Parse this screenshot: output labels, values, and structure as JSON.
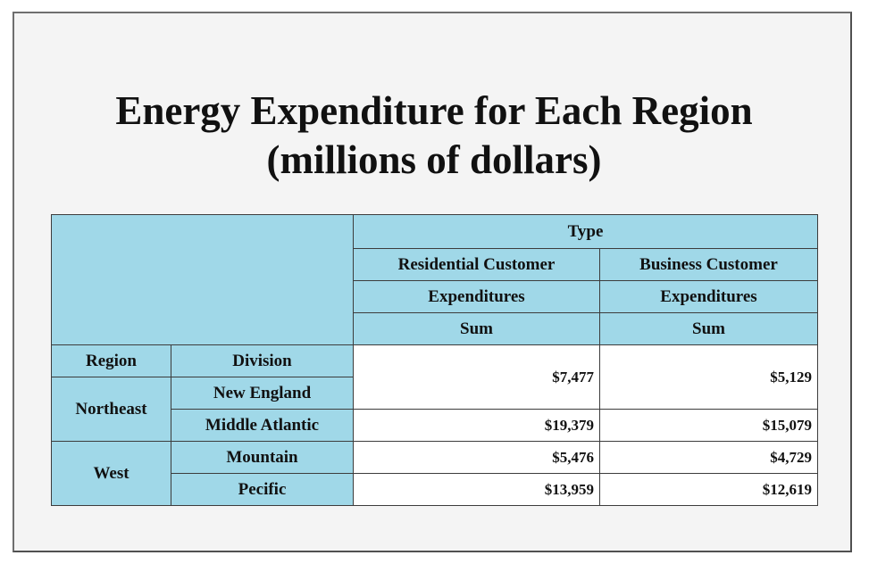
{
  "title": {
    "line1": "Energy Expenditure for Each Region",
    "line2": "(millions of dollars)"
  },
  "chart_data": {
    "type": "table",
    "title": "Energy Expenditure for Each Region (millions of dollars)",
    "column_group_label": "Type",
    "columns": [
      {
        "name": "Residential Customer",
        "measure": "Expenditures",
        "stat": "Sum"
      },
      {
        "name": "Business Customer",
        "measure": "Expenditures",
        "stat": "Sum"
      }
    ],
    "row_headers": [
      "Region",
      "Division"
    ],
    "rows": [
      {
        "region": "Northeast",
        "division": "New England",
        "values": [
          "$7,477",
          "$5,129"
        ]
      },
      {
        "region": "Northeast",
        "division": "Middle Atlantic",
        "values": [
          "$19,379",
          "$15,079"
        ]
      },
      {
        "region": "West",
        "division": "Mountain",
        "values": [
          "$5,476",
          "$4,729"
        ]
      },
      {
        "region": "West",
        "division": "Pecific",
        "values": [
          "$13,959",
          "$12,619"
        ]
      }
    ],
    "regions": [
      "Northeast",
      "West"
    ]
  },
  "colors": {
    "header_bg": "#a0d8e8",
    "cell_bg": "#ffffff",
    "panel_bg": "#f4f4f4",
    "border": "#3c3c3c"
  }
}
